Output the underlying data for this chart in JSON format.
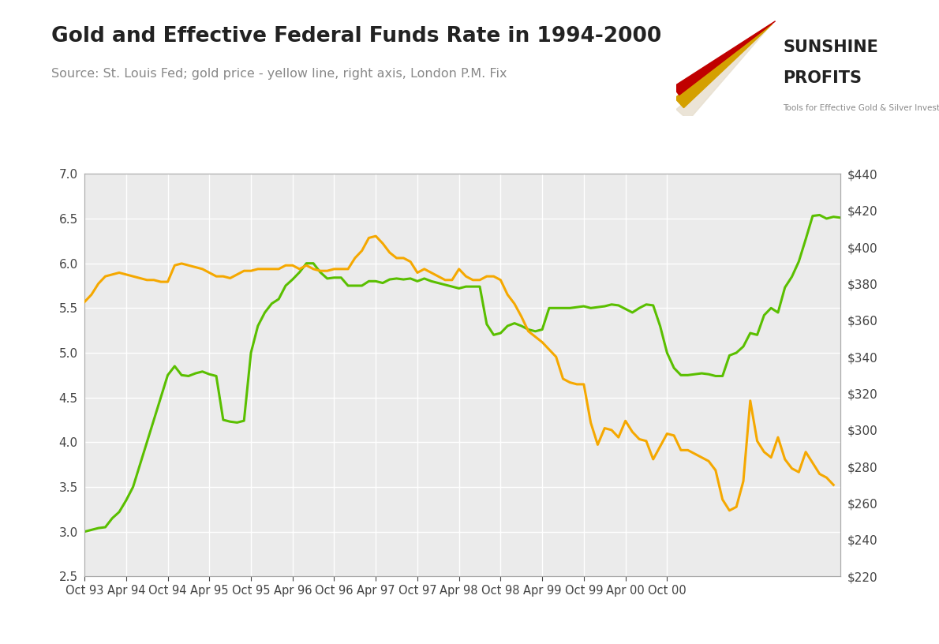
{
  "title": "Gold and Effective Federal Funds Rate in 1994-2000",
  "subtitle": "Source: St. Louis Fed; gold price - yellow line, right axis, London P.M. Fix",
  "bg_color": "#ffffff",
  "plot_bg": "#ebebeb",
  "ffr_color": "#5abf00",
  "gold_color": "#f5a800",
  "left_ylim": [
    2.5,
    7.0
  ],
  "right_ylim": [
    220,
    440
  ],
  "left_yticks": [
    2.5,
    3.0,
    3.5,
    4.0,
    4.5,
    5.0,
    5.5,
    6.0,
    6.5,
    7.0
  ],
  "right_yticks": [
    220,
    240,
    260,
    280,
    300,
    320,
    340,
    360,
    380,
    400,
    420,
    440
  ],
  "xtick_labels": [
    "Oct 93",
    "Apr 94",
    "Oct 94",
    "Apr 95",
    "Oct 95",
    "Apr 96",
    "Oct 96",
    "Apr 97",
    "Oct 97",
    "Apr 98",
    "Oct 98",
    "Apr 99",
    "Oct 99",
    "Apr 00",
    "Oct 00"
  ],
  "ffr_y": [
    3.0,
    3.02,
    3.04,
    3.05,
    3.15,
    3.22,
    3.35,
    3.5,
    3.75,
    4.0,
    4.25,
    4.5,
    4.75,
    4.85,
    4.75,
    4.74,
    4.77,
    4.79,
    4.76,
    4.74,
    4.25,
    4.23,
    4.22,
    4.24,
    5.0,
    5.3,
    5.45,
    5.55,
    5.6,
    5.75,
    5.82,
    5.9,
    6.0,
    6.0,
    5.9,
    5.83,
    5.84,
    5.84,
    5.75,
    5.75,
    5.75,
    5.8,
    5.8,
    5.78,
    5.82,
    5.83,
    5.82,
    5.83,
    5.8,
    5.83,
    5.8,
    5.78,
    5.76,
    5.74,
    5.72,
    5.74,
    5.74,
    5.74,
    5.32,
    5.2,
    5.22,
    5.3,
    5.33,
    5.3,
    5.26,
    5.24,
    5.26,
    5.5,
    5.5,
    5.5,
    5.5,
    5.51,
    5.52,
    5.5,
    5.51,
    5.52,
    5.54,
    5.53,
    5.49,
    5.45,
    5.5,
    5.54,
    5.53,
    5.3,
    5.0,
    4.83,
    4.75,
    4.75,
    4.76,
    4.77,
    4.76,
    4.74,
    4.74,
    4.97,
    5.0,
    5.07,
    5.22,
    5.2,
    5.42,
    5.5,
    5.45,
    5.73,
    5.85,
    6.02,
    6.27,
    6.53,
    6.54,
    6.5,
    6.52,
    6.51
  ],
  "gold_y": [
    370,
    374,
    380,
    384,
    385,
    386,
    385,
    384,
    383,
    382,
    382,
    381,
    381,
    390,
    391,
    390,
    389,
    388,
    386,
    384,
    384,
    383,
    385,
    387,
    387,
    388,
    388,
    388,
    388,
    390,
    390,
    388,
    390,
    388,
    387,
    387,
    388,
    388,
    388,
    394,
    398,
    405,
    406,
    402,
    397,
    394,
    394,
    392,
    386,
    388,
    386,
    384,
    382,
    382,
    388,
    384,
    382,
    382,
    384,
    384,
    382,
    374,
    369,
    362,
    354,
    351,
    348,
    344,
    340,
    328,
    326,
    325,
    325,
    304,
    292,
    301,
    300,
    296,
    305,
    299,
    295,
    294,
    284,
    291,
    298,
    297,
    289,
    289,
    287,
    285,
    283,
    278,
    262,
    256,
    258,
    272,
    316,
    294,
    288,
    285,
    296,
    284,
    279,
    277,
    288,
    282,
    276,
    274,
    270
  ]
}
